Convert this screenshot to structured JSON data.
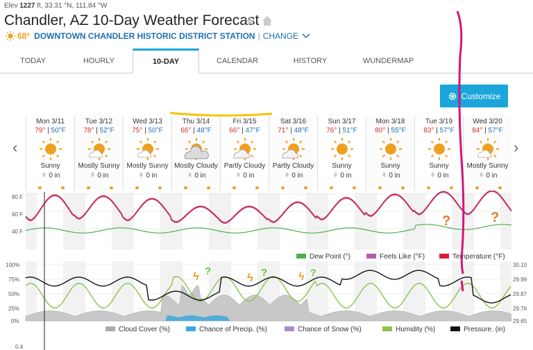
{
  "header": {
    "elev_label": "Elev",
    "elev_value": "1227",
    "elev_unit": "ft, 33.31 °N, 111.84 °W",
    "title": "Chandler, AZ 10-Day Weather Forecast",
    "current_temp": "68°",
    "station_name": "DOWNTOWN CHANDLER HISTORIC DISTRICT STATION",
    "change_label": "CHANGE"
  },
  "tabs": [
    {
      "label": "TODAY"
    },
    {
      "label": "HOURLY"
    },
    {
      "label": "10-DAY"
    },
    {
      "label": "CALENDAR"
    },
    {
      "label": "HISTORY"
    },
    {
      "label": "WUNDERMAP"
    }
  ],
  "customize_label": "Customize",
  "days": [
    {
      "name": "Mon 3/11",
      "hi": "79°",
      "lo": "50°F",
      "cond": "Sunny",
      "icon": "sunny-icon",
      "precip": "0 in"
    },
    {
      "name": "Tue 3/12",
      "hi": "78°",
      "lo": "52°F",
      "cond": "Mostly Sunny",
      "icon": "mostly-sunny-icon",
      "precip": "0 in"
    },
    {
      "name": "Wed 3/13",
      "hi": "75°",
      "lo": "50°F",
      "cond": "Mostly Sunny",
      "icon": "mostly-sunny-icon",
      "precip": "0 in"
    },
    {
      "name": "Thu 3/14",
      "hi": "66°",
      "lo": "48°F",
      "cond": "Mostly Cloudy",
      "icon": "mostly-cloudy-icon",
      "precip": "0 in"
    },
    {
      "name": "Fri 3/15",
      "hi": "66°",
      "lo": "47°F",
      "cond": "Partly Cloudy",
      "icon": "partly-cloudy-icon",
      "precip": "0 in"
    },
    {
      "name": "Sat 3/16",
      "hi": "71°",
      "lo": "48°F",
      "cond": "Partly Cloudy",
      "icon": "partly-cloudy-icon",
      "precip": "0 in"
    },
    {
      "name": "Sun 3/17",
      "hi": "76°",
      "lo": "51°F",
      "cond": "Sunny",
      "icon": "sunny-icon",
      "precip": "0 in"
    },
    {
      "name": "Mon 3/18",
      "hi": "80°",
      "lo": "55°F",
      "cond": "Sunny",
      "icon": "sunny-icon",
      "precip": "0 in"
    },
    {
      "name": "Tue 3/19",
      "hi": "83°",
      "lo": "57°F",
      "cond": "Sunny",
      "icon": "sunny-icon",
      "precip": "0 in"
    },
    {
      "name": "Wed 3/20",
      "hi": "84°",
      "lo": "57°F",
      "cond": "Mostly Sunny",
      "icon": "mostly-sunny-icon",
      "precip": "0 in"
    }
  ],
  "temp_chart": {
    "y_ticks": [
      "80 F",
      "60 F",
      "40 F"
    ],
    "legend": [
      "Dew Point (°)",
      "Feels Like (°F)",
      "Temperature (°F)"
    ],
    "colors": {
      "dew": "#4caf50",
      "feels": "#b05fb0",
      "temp": "#d21f3c"
    }
  },
  "cloud_chart": {
    "y_left": [
      "100%",
      "75%",
      "50%",
      "25%",
      "0%"
    ],
    "y_right": [
      "30.10",
      "29.99",
      "29.87",
      "29.76",
      "29.65"
    ],
    "bottom_tick": "0.4",
    "legend": [
      "Cloud Cover (%)",
      "Chance of Precip. (%)",
      "Chance of Snow (%)",
      "Humidity (%)",
      "Pressure. (in)"
    ],
    "colors": {
      "cloud": "#aaaaaa",
      "precip": "#3ba9dc",
      "snow": "#a98bc8",
      "humidity": "#8bc34a",
      "pressure": "#111111"
    }
  },
  "colors": {
    "accent": "#1aa6d8",
    "link": "#1f6fb0",
    "sun": "#f0a020"
  }
}
